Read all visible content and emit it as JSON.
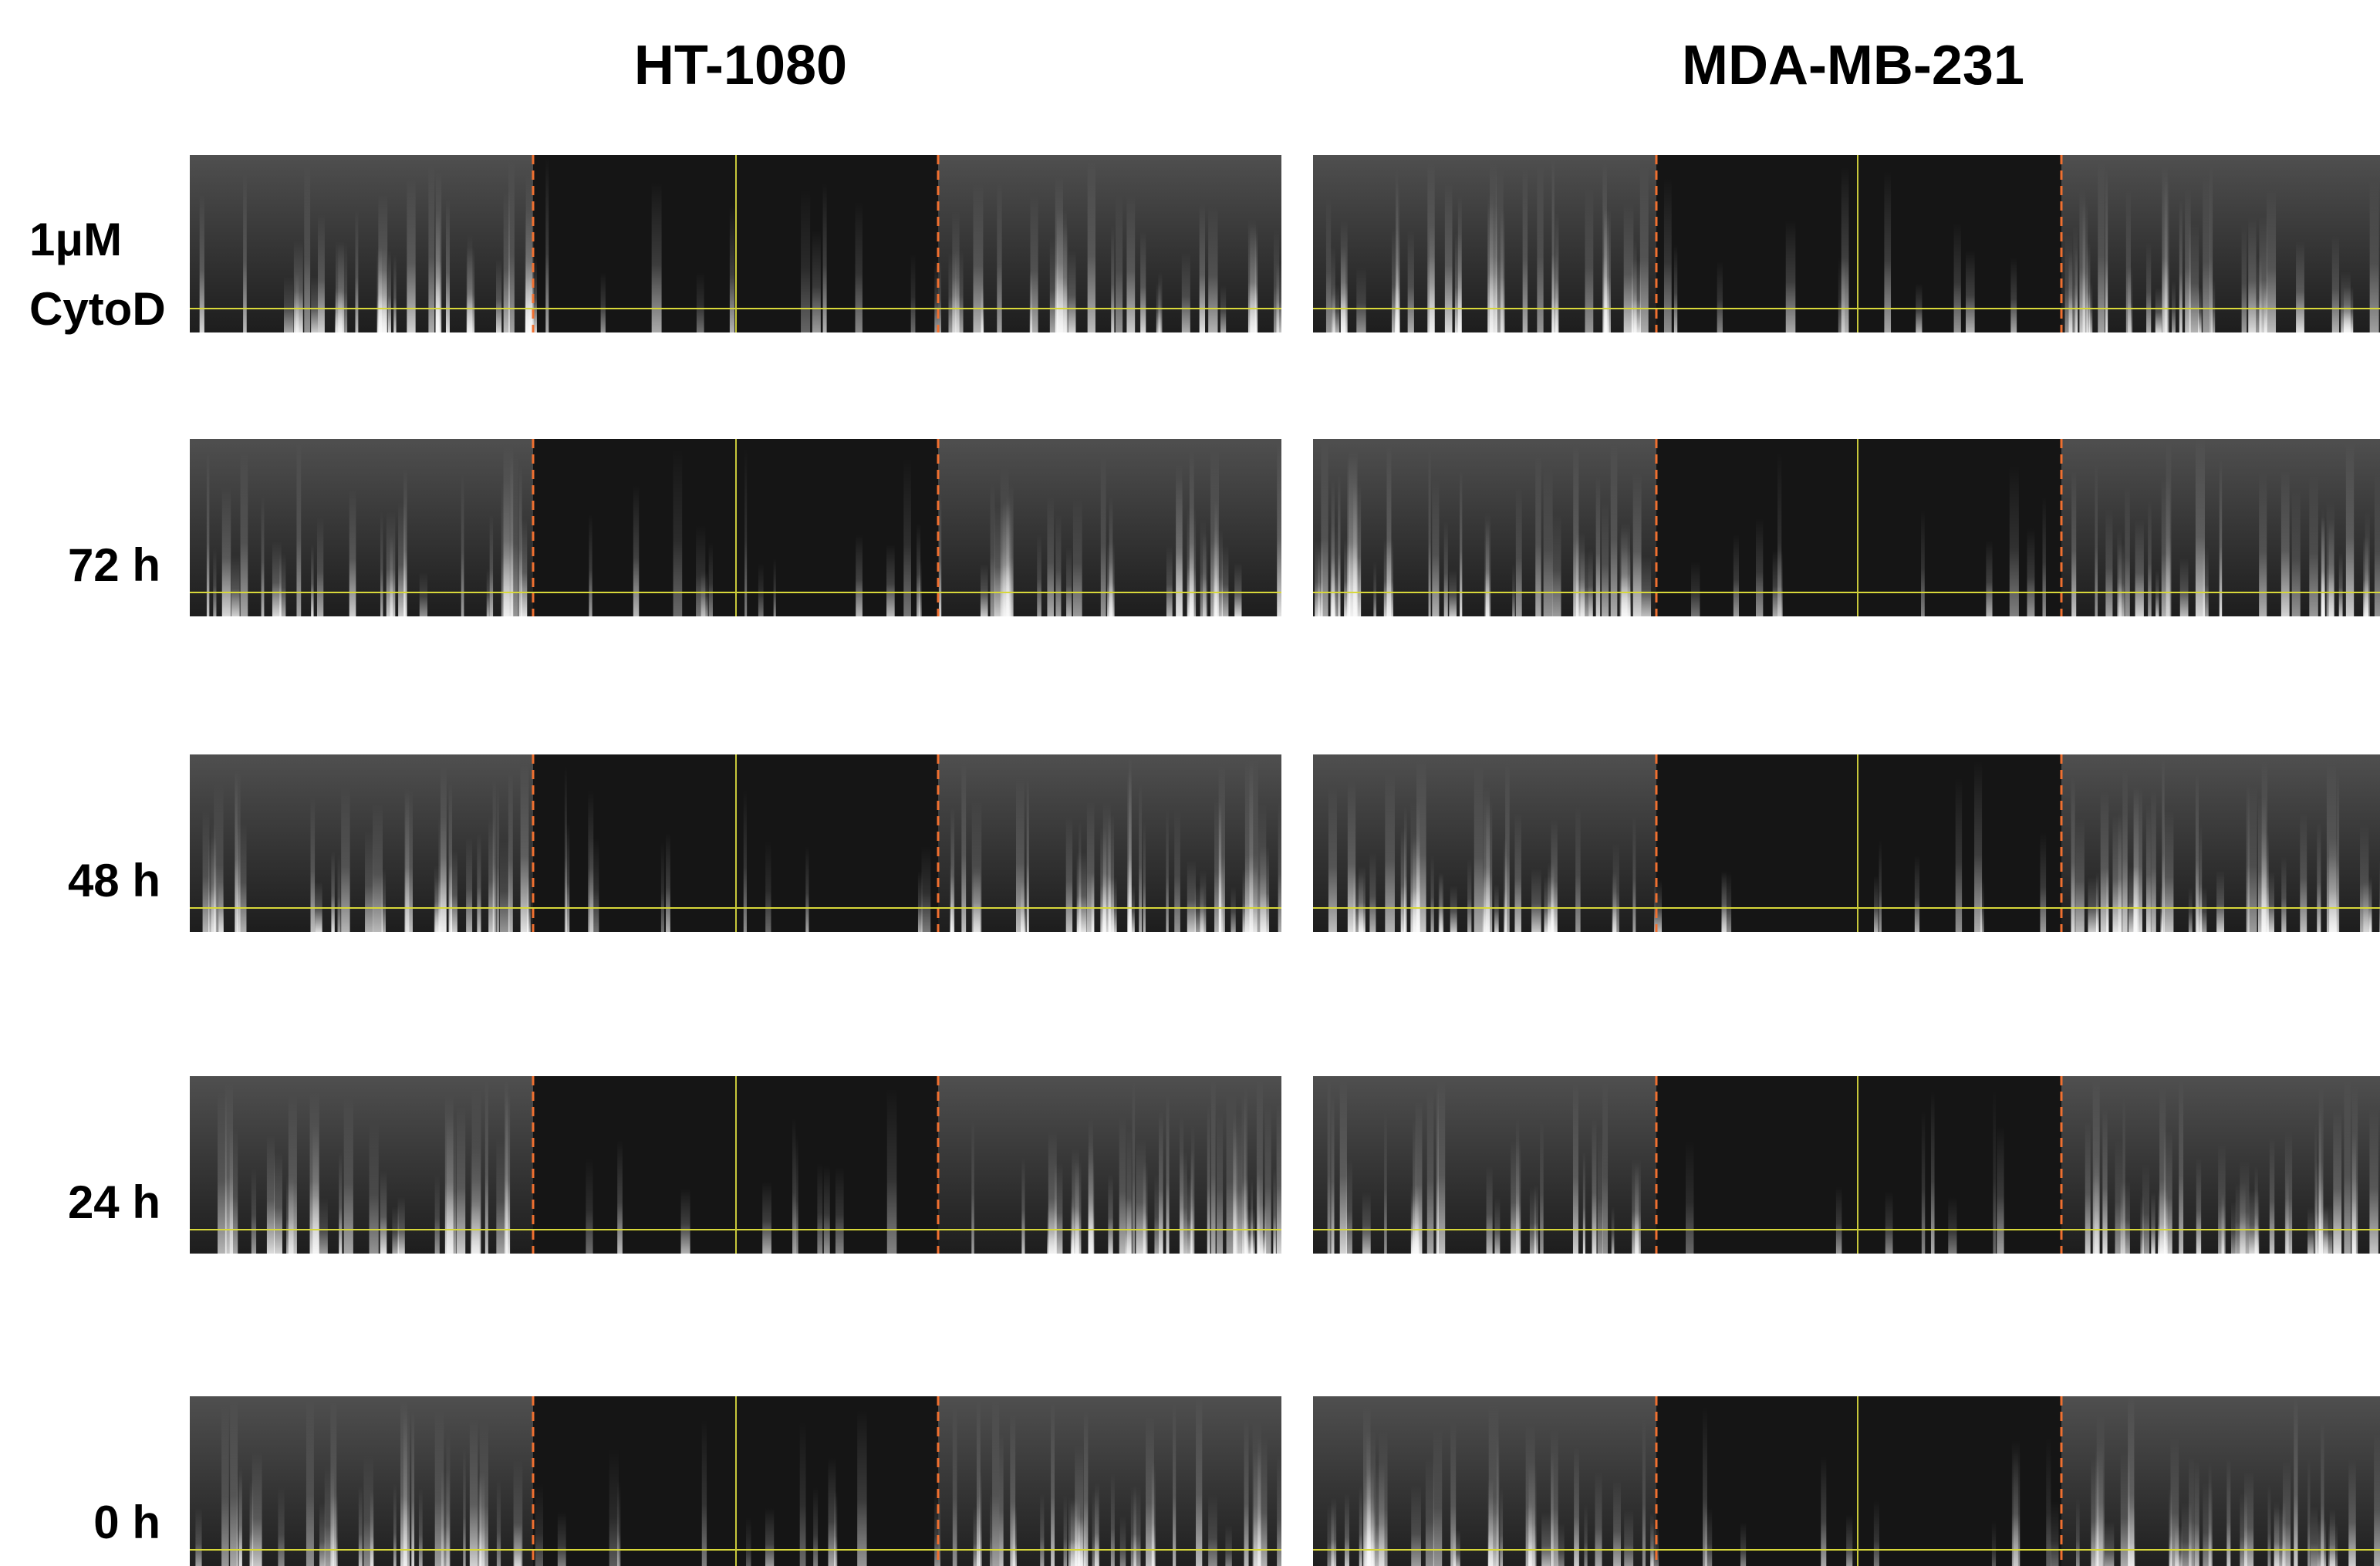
{
  "columns": [
    "HT-1080",
    "MDA-MB-231"
  ],
  "rows": [
    [
      "1μM",
      "CytoD"
    ],
    [
      "72 h"
    ],
    [
      "48 h"
    ],
    [
      "24 h"
    ],
    [
      "0 h"
    ]
  ]
}
